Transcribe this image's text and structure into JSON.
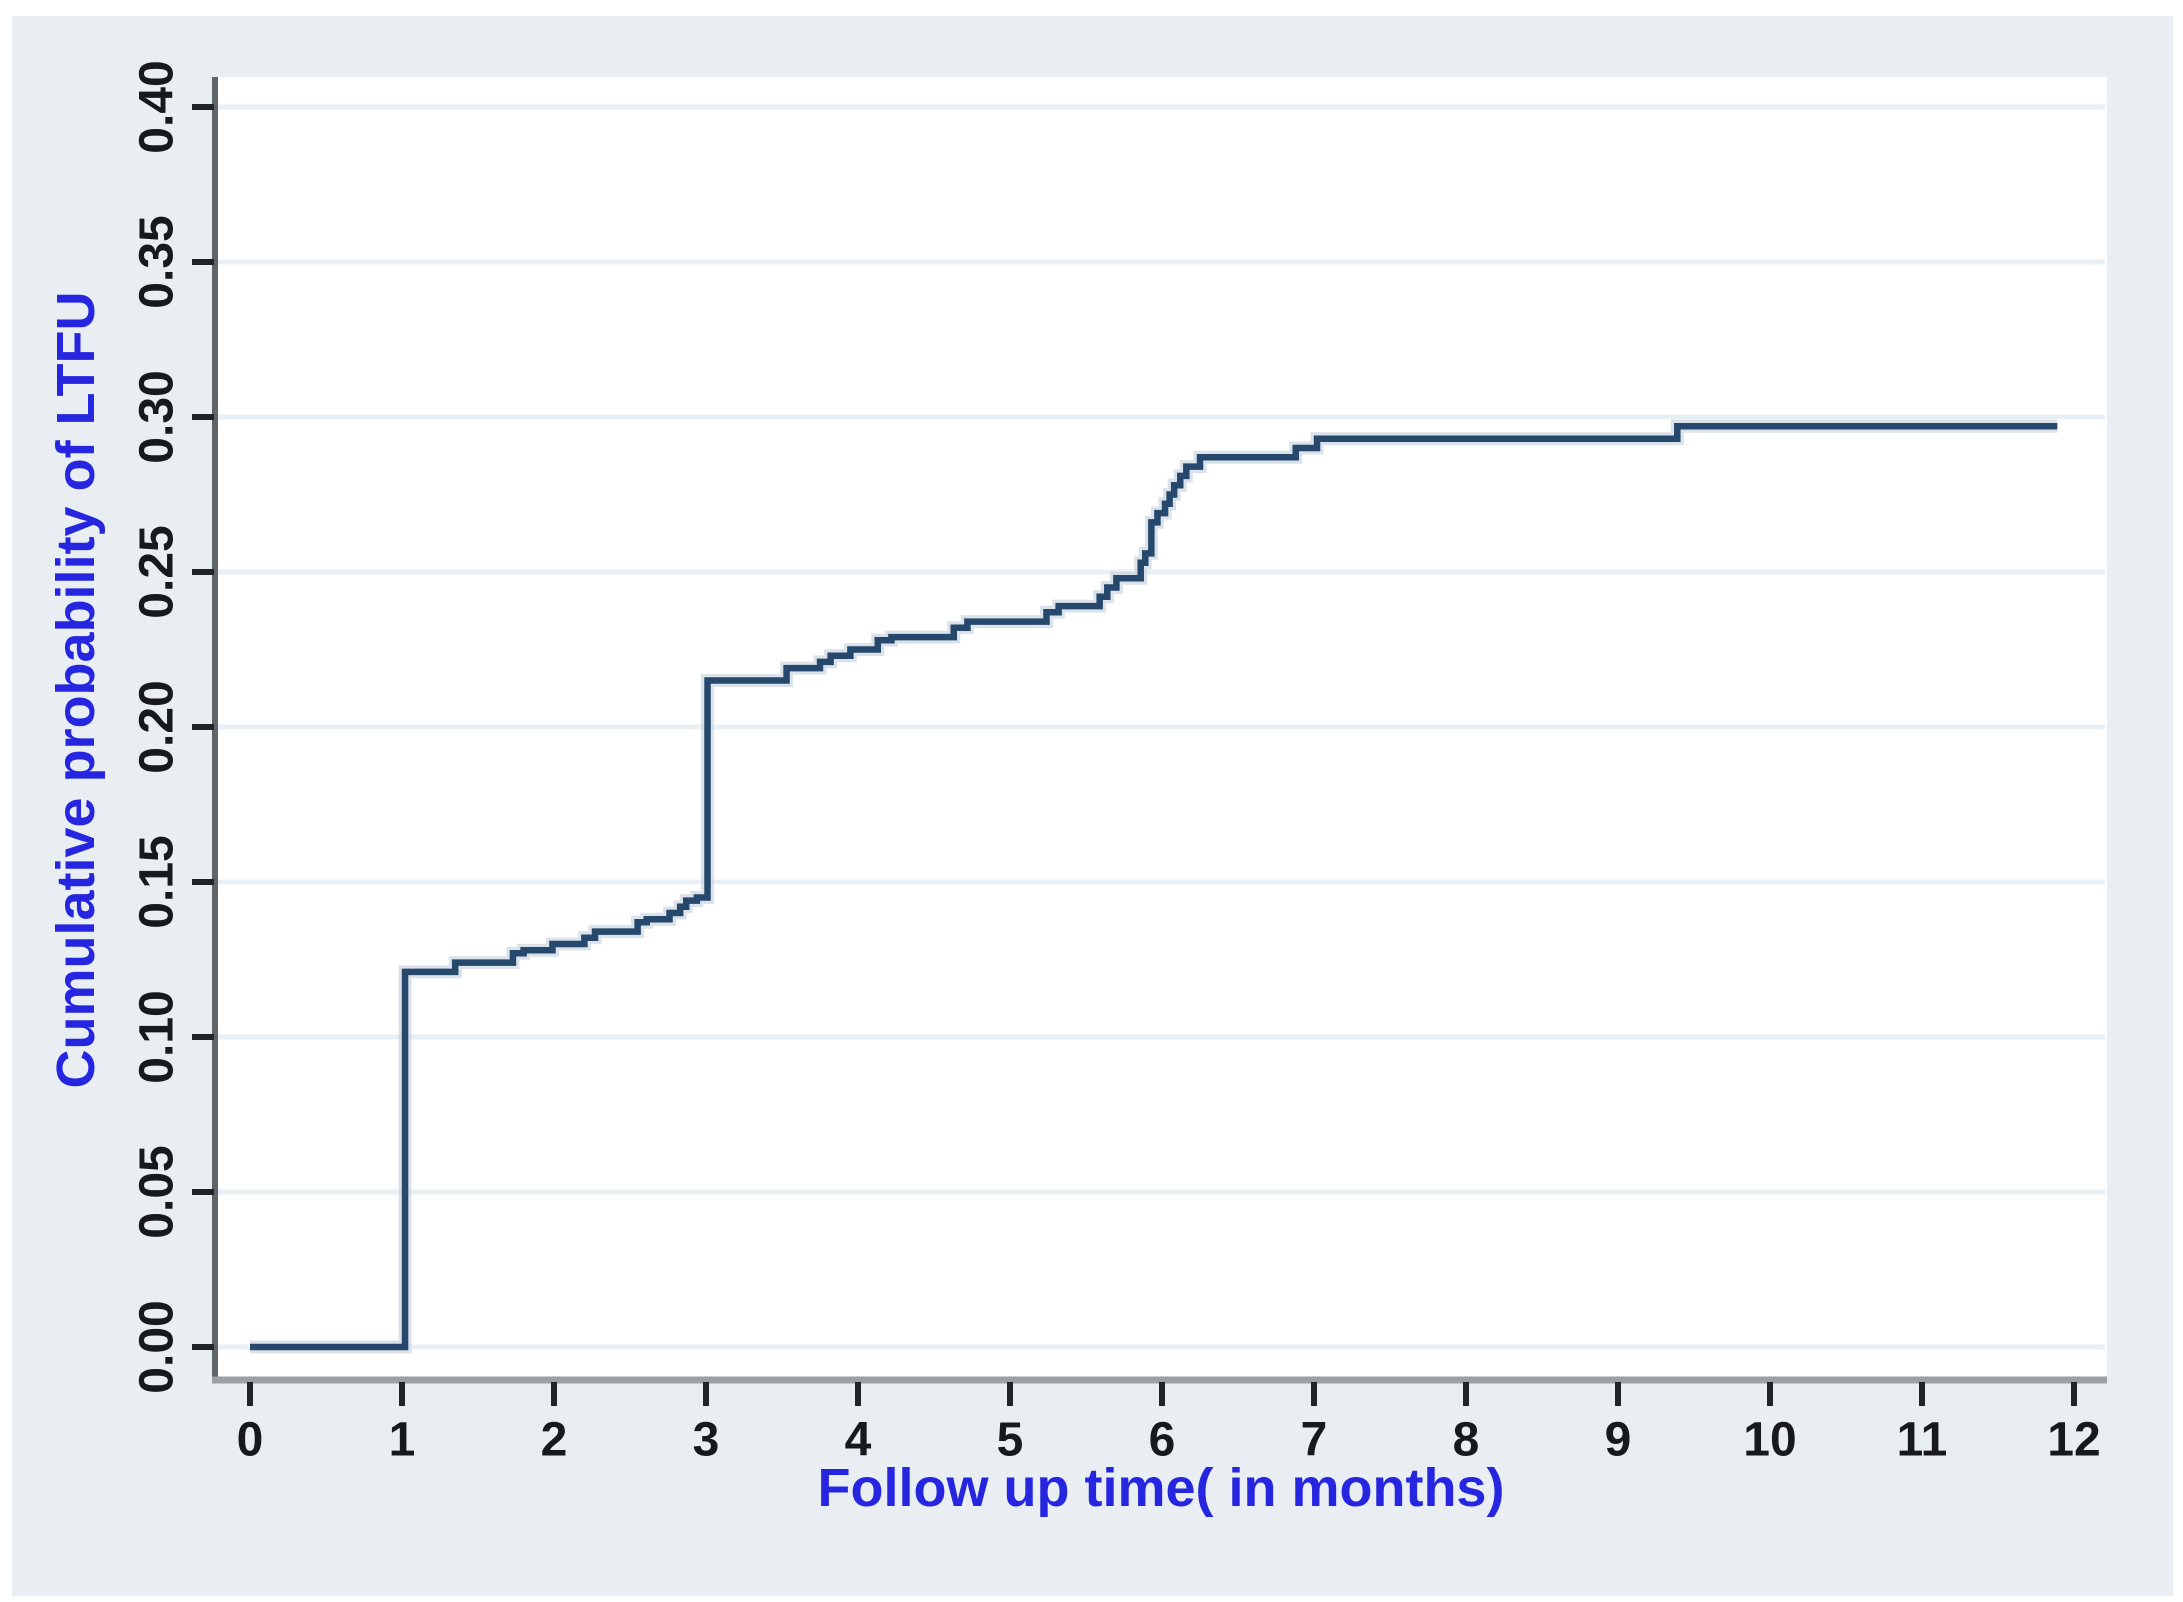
{
  "figure": {
    "background_color": "#e8eef2",
    "page_border_color": "#ffffff",
    "plot_background": "#ffffff",
    "gridline_color": "#e9f0f5",
    "x_axis_color": "#9aa0a5",
    "y_axis_color": "#5f6468",
    "tick_color": "#202327",
    "tick_label_color": "#17191c",
    "axis_title_color": "#2626e0",
    "curve_color": "#26486c",
    "curve_halo_color": "#b7c6d6"
  },
  "chart_data": {
    "type": "line",
    "subtype": "step",
    "title": "",
    "xlabel": "Follow up time( in months)",
    "ylabel": "Cumulative probability of LTFU",
    "xlim": [
      0,
      12
    ],
    "ylim": [
      0.0,
      0.4
    ],
    "grid": "horizontal",
    "legend": "none",
    "x_ticks": [
      0,
      1,
      2,
      3,
      4,
      5,
      6,
      7,
      8,
      9,
      10,
      11,
      12
    ],
    "x_tick_labels": [
      "0",
      "1",
      "2",
      "3",
      "4",
      "5",
      "6",
      "7",
      "8",
      "9",
      "10",
      "11",
      "12"
    ],
    "y_ticks": [
      0.0,
      0.05,
      0.1,
      0.15,
      0.2,
      0.25,
      0.3,
      0.35,
      0.4
    ],
    "y_tick_labels": [
      "0.00",
      "0.05",
      "0.10",
      "0.15",
      "0.20",
      "0.25",
      "0.30",
      "0.35",
      "0.40"
    ],
    "series": [
      {
        "name": "Cumulative probability of LTFU",
        "steps": [
          {
            "t": 0.0,
            "p": 0.0
          },
          {
            "t": 1.02,
            "p": 0.121
          },
          {
            "t": 1.35,
            "p": 0.124
          },
          {
            "t": 1.73,
            "p": 0.127
          },
          {
            "t": 1.8,
            "p": 0.128
          },
          {
            "t": 1.99,
            "p": 0.13
          },
          {
            "t": 2.2,
            "p": 0.132
          },
          {
            "t": 2.27,
            "p": 0.134
          },
          {
            "t": 2.55,
            "p": 0.137
          },
          {
            "t": 2.61,
            "p": 0.138
          },
          {
            "t": 2.76,
            "p": 0.14
          },
          {
            "t": 2.83,
            "p": 0.142
          },
          {
            "t": 2.87,
            "p": 0.144
          },
          {
            "t": 2.94,
            "p": 0.145
          },
          {
            "t": 3.01,
            "p": 0.215
          },
          {
            "t": 3.53,
            "p": 0.219
          },
          {
            "t": 3.75,
            "p": 0.221
          },
          {
            "t": 3.82,
            "p": 0.223
          },
          {
            "t": 3.95,
            "p": 0.225
          },
          {
            "t": 4.13,
            "p": 0.228
          },
          {
            "t": 4.22,
            "p": 0.229
          },
          {
            "t": 4.63,
            "p": 0.232
          },
          {
            "t": 4.72,
            "p": 0.234
          },
          {
            "t": 5.24,
            "p": 0.237
          },
          {
            "t": 5.32,
            "p": 0.239
          },
          {
            "t": 5.59,
            "p": 0.242
          },
          {
            "t": 5.64,
            "p": 0.245
          },
          {
            "t": 5.7,
            "p": 0.248
          },
          {
            "t": 5.86,
            "p": 0.253
          },
          {
            "t": 5.89,
            "p": 0.256
          },
          {
            "t": 5.93,
            "p": 0.266
          },
          {
            "t": 5.97,
            "p": 0.269
          },
          {
            "t": 6.02,
            "p": 0.272
          },
          {
            "t": 6.05,
            "p": 0.275
          },
          {
            "t": 6.08,
            "p": 0.278
          },
          {
            "t": 6.12,
            "p": 0.281
          },
          {
            "t": 6.16,
            "p": 0.284
          },
          {
            "t": 6.25,
            "p": 0.287
          },
          {
            "t": 6.88,
            "p": 0.29
          },
          {
            "t": 7.02,
            "p": 0.293
          },
          {
            "t": 9.39,
            "p": 0.297
          }
        ],
        "end_t": 11.89,
        "final_value": 0.297
      }
    ]
  }
}
